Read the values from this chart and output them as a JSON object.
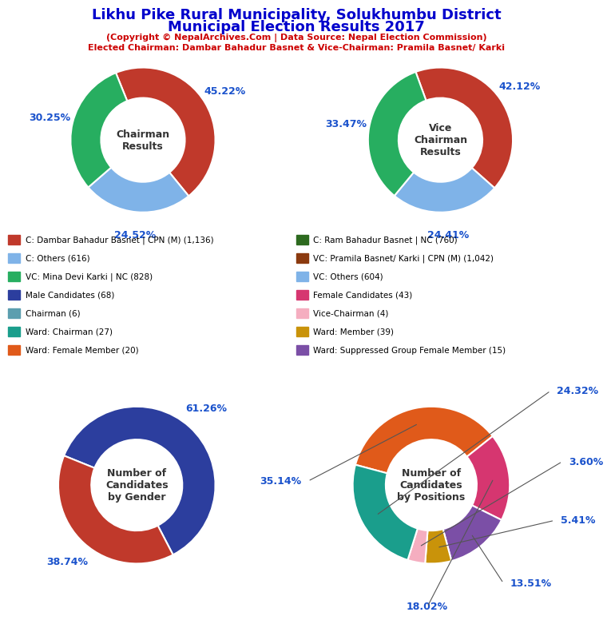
{
  "title_line1": "Likhu Pike Rural Municipality, Solukhumbu District",
  "title_line2": "Municipal Election Results 2017",
  "subtitle1": "(Copyright © NepalArchives.Com | Data Source: Nepal Election Commission)",
  "subtitle2": "Elected Chairman: Dambar Bahadur Basnet & Vice-Chairman: Pramila Basnet/ Karki",
  "title_color": "#0000cc",
  "subtitle_color": "#cc0000",
  "chairman": {
    "values": [
      45.22,
      24.52,
      30.25
    ],
    "colors": [
      "#c0392b",
      "#7fb3e8",
      "#27ae60"
    ],
    "startangle": 112,
    "center_text": "Chairman\nResults",
    "labels": [
      "45.22%",
      "24.52%",
      "30.25%"
    ]
  },
  "vice_chairman": {
    "values": [
      42.12,
      24.41,
      33.47
    ],
    "colors": [
      "#c0392b",
      "#7fb3e8",
      "#27ae60"
    ],
    "startangle": 110,
    "center_text": "Vice\nChairman\nResults",
    "labels": [
      "42.12%",
      "24.41%",
      "33.47%"
    ]
  },
  "gender": {
    "values": [
      61.26,
      38.74
    ],
    "colors": [
      "#2c3e9e",
      "#c0392b"
    ],
    "startangle": 158,
    "center_text": "Number of\nCandidates\nby Gender",
    "labels": [
      "61.26%",
      "38.74%"
    ]
  },
  "positions": {
    "values": [
      35.14,
      18.02,
      13.51,
      5.41,
      3.6,
      24.32
    ],
    "colors": [
      "#e05a1a",
      "#d63670",
      "#7b4fa6",
      "#c9930a",
      "#f5aec0",
      "#1a9e8c"
    ],
    "startangle": 165,
    "center_text": "Number of\nCandidates\nby Positions",
    "labels": [
      "35.14%",
      "18.02%",
      "13.51%",
      "5.41%",
      "3.60%",
      "24.32%"
    ]
  },
  "legend_items_left": [
    {
      "label": "C: Dambar Bahadur Basnet | CPN (M) (1,136)",
      "color": "#c0392b"
    },
    {
      "label": "C: Others (616)",
      "color": "#7fb3e8"
    },
    {
      "label": "VC: Mina Devi Karki | NC (828)",
      "color": "#27ae60"
    },
    {
      "label": "Male Candidates (68)",
      "color": "#2c3e9e"
    },
    {
      "label": "Chairman (6)",
      "color": "#5b9eaf"
    },
    {
      "label": "Ward: Chairman (27)",
      "color": "#1a9e8c"
    },
    {
      "label": "Ward: Female Member (20)",
      "color": "#e05a1a"
    }
  ],
  "legend_items_right": [
    {
      "label": "C: Ram Bahadur Basnet | NC (760)",
      "color": "#2d6a1f"
    },
    {
      "label": "VC: Pramila Basnet/ Karki | CPN (M) (1,042)",
      "color": "#8b3a0f"
    },
    {
      "label": "VC: Others (604)",
      "color": "#7fb3e8"
    },
    {
      "label": "Female Candidates (43)",
      "color": "#d63670"
    },
    {
      "label": "Vice-Chairman (4)",
      "color": "#f5aec0"
    },
    {
      "label": "Ward: Member (39)",
      "color": "#c9930a"
    },
    {
      "label": "Ward: Suppressed Group Female Member (15)",
      "color": "#7b4fa6"
    }
  ]
}
